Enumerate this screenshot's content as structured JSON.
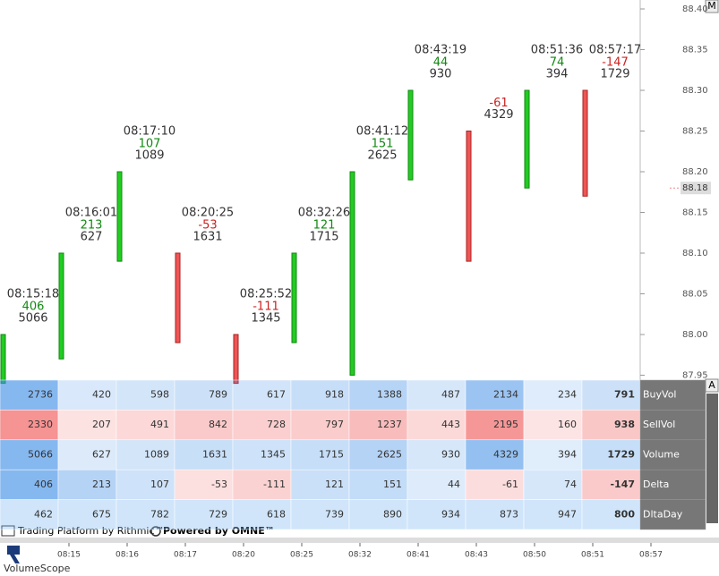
{
  "price_axis": {
    "ticks": [
      {
        "value": 88.4,
        "label": "88.40"
      },
      {
        "value": 88.35,
        "label": "88.35"
      },
      {
        "value": 88.3,
        "label": "88.30"
      },
      {
        "value": 88.25,
        "label": "88.25"
      },
      {
        "value": 88.2,
        "label": "88.20"
      },
      {
        "value": 88.15,
        "label": "88.15"
      },
      {
        "value": 88.1,
        "label": "88.10"
      },
      {
        "value": 88.05,
        "label": "88.05"
      },
      {
        "value": 88.0,
        "label": "88.00"
      },
      {
        "value": 87.95,
        "label": "87.95"
      }
    ],
    "last_price": {
      "value": 88.18,
      "label": "88.18"
    }
  },
  "bars": [
    {
      "time": "08:15:18",
      "delta": 406,
      "volume": 5066,
      "open": 87.94,
      "close": 88.0
    },
    {
      "time": "08:16:01",
      "delta": 213,
      "volume": 627,
      "open": 87.97,
      "close": 88.1
    },
    {
      "time": "08:17:10",
      "delta": 107,
      "volume": 1089,
      "open": 88.09,
      "close": 88.2
    },
    {
      "time": "08:20:25",
      "delta": -53,
      "volume": 1631,
      "open": 88.1,
      "close": 87.99
    },
    {
      "time": "08:25:52",
      "delta": -111,
      "volume": 1345,
      "open": 88.0,
      "close": 87.94
    },
    {
      "time": "08:32:26",
      "delta": 121,
      "volume": 1715,
      "open": 87.99,
      "close": 88.1
    },
    {
      "time": "08:41:12",
      "delta": 151,
      "volume": 2625,
      "open": 87.95,
      "close": 88.2
    },
    {
      "time": "08:43:19",
      "delta": 44,
      "volume": 930,
      "open": 88.19,
      "close": 88.3
    },
    {
      "time": null,
      "delta": -61,
      "volume": 4329,
      "open": 88.25,
      "close": 88.09
    },
    {
      "time": "08:51:36",
      "delta": 74,
      "volume": 394,
      "open": 88.18,
      "close": 88.3
    },
    {
      "time": "08:57:17",
      "delta": -147,
      "volume": 1729,
      "open": 88.3,
      "close": 88.17
    }
  ],
  "table": {
    "row_labels": [
      "BuyVol",
      "SellVol",
      "Volume",
      "Delta",
      "DltaDay"
    ],
    "rows": [
      [
        2736,
        420,
        598,
        789,
        617,
        918,
        1388,
        487,
        2134,
        234,
        791
      ],
      [
        2330,
        207,
        491,
        842,
        728,
        797,
        1237,
        443,
        2195,
        160,
        938
      ],
      [
        5066,
        627,
        1089,
        1631,
        1345,
        1715,
        2625,
        930,
        4329,
        394,
        1729
      ],
      [
        406,
        213,
        107,
        -53,
        -111,
        121,
        151,
        44,
        -61,
        74,
        -147
      ],
      [
        462,
        675,
        782,
        729,
        618,
        739,
        890,
        934,
        873,
        947,
        800
      ]
    ]
  },
  "time_axis": [
    "08:15",
    "08:16",
    "08:17",
    "08:20",
    "08:25",
    "08:32",
    "08:41",
    "08:43",
    "08:50",
    "08:51",
    "08:57"
  ],
  "footer": {
    "rithmic": "Trading Platform by Rithmic™",
    "omne": "Powered by OMNE™"
  },
  "buttons": {
    "top": "M",
    "table": "A"
  },
  "app_name": "VolumeScope"
}
